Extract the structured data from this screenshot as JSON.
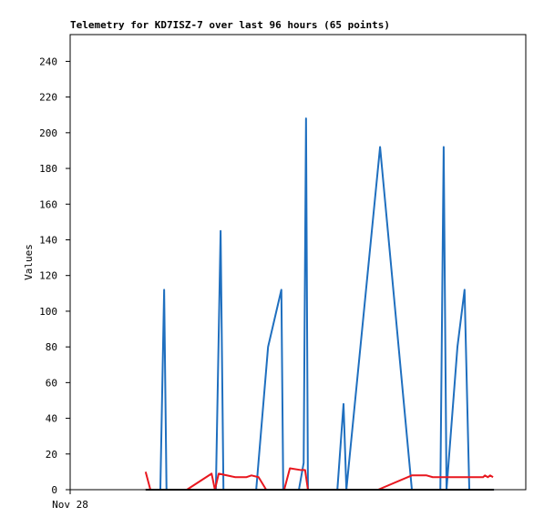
{
  "chart_data": {
    "type": "line",
    "title": "Telemetry for KD7ISZ-7 over last 96 hours (65 points)",
    "y_label": "Values",
    "xlim": [
      0,
      96
    ],
    "xticks": [
      {
        "value": 0,
        "label": "Nov 28"
      }
    ],
    "ylim": [
      0,
      255
    ],
    "yticks": [
      0,
      20,
      40,
      60,
      80,
      100,
      120,
      140,
      160,
      180,
      200,
      220,
      240
    ],
    "grid": false,
    "series": [
      {
        "color": "#1f6fbf",
        "x": [
          16.5,
          19.0,
          19.8,
          20.3,
          30.7,
          31.7,
          32.3,
          39.2,
          41.7,
          44.5,
          44.9,
          48.2,
          49.2,
          49.7,
          50.1,
          56.3,
          57.6,
          58.2,
          65.3,
          72.0,
          78.0,
          78.7,
          79.3,
          81.6,
          83.1,
          84.1,
          89.3
        ],
        "values": [
          0,
          0,
          112,
          0,
          0,
          145,
          0,
          0,
          80,
          112,
          0,
          0,
          15,
          208,
          0,
          0,
          48,
          0,
          192,
          0,
          0,
          192,
          0,
          80,
          112,
          0,
          0
        ]
      },
      {
        "color": "#e8171f",
        "x": [
          15.9,
          16.9,
          24.6,
          29.8,
          30.5,
          31.3,
          34.8,
          37.1,
          38.2,
          39.7,
          41.3,
          45.1,
          46.3,
          48.6,
          49.5,
          50.1,
          64.9,
          72.0,
          75.1,
          76.4,
          87.0,
          87.4,
          88.0,
          88.5,
          89.1
        ],
        "values": [
          10,
          0,
          0,
          9,
          0,
          9,
          7,
          7,
          8,
          7,
          0,
          0,
          12,
          11,
          11,
          0,
          0,
          8,
          8,
          7,
          7,
          8,
          7,
          8,
          7
        ]
      },
      {
        "color": "#000000",
        "x": [
          15.9,
          89.3
        ],
        "values": [
          0,
          0
        ]
      }
    ]
  }
}
